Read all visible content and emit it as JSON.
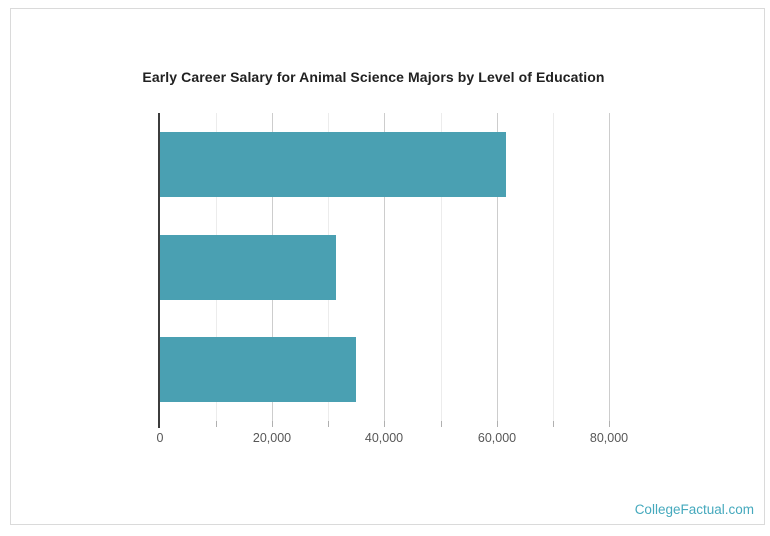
{
  "title": "Early Career Salary for Animal Science Majors by Level of Education",
  "watermark": {
    "text": "CollegeFactual.com"
  },
  "colors": {
    "bar": "#4aa0b2",
    "title": "#212121",
    "tick_label": "#575757",
    "axis": "#3c3c3c",
    "grid_major": "#cdcdcd",
    "grid_minor": "#ececec",
    "tick": "#b0b0b0",
    "border": "#dadada",
    "watermark": "#45a9bd"
  },
  "chart_data": {
    "type": "bar",
    "orientation": "horizontal",
    "title": "Early Career Salary for Animal Science Majors by Level of Education",
    "categories": [
      "",
      "",
      ""
    ],
    "values": [
      61600,
      31300,
      35000
    ],
    "xlabel": "",
    "ylabel": "",
    "xlim": [
      0,
      89700
    ],
    "x_major_ticks": [
      0,
      20000,
      40000,
      60000,
      80000
    ],
    "x_tick_labels": [
      "0",
      "20,000",
      "40,000",
      "60,000",
      "80,000"
    ],
    "x_minor_step": 10000,
    "grid": true,
    "legend": false,
    "bar_color": "#4aa0b2"
  }
}
